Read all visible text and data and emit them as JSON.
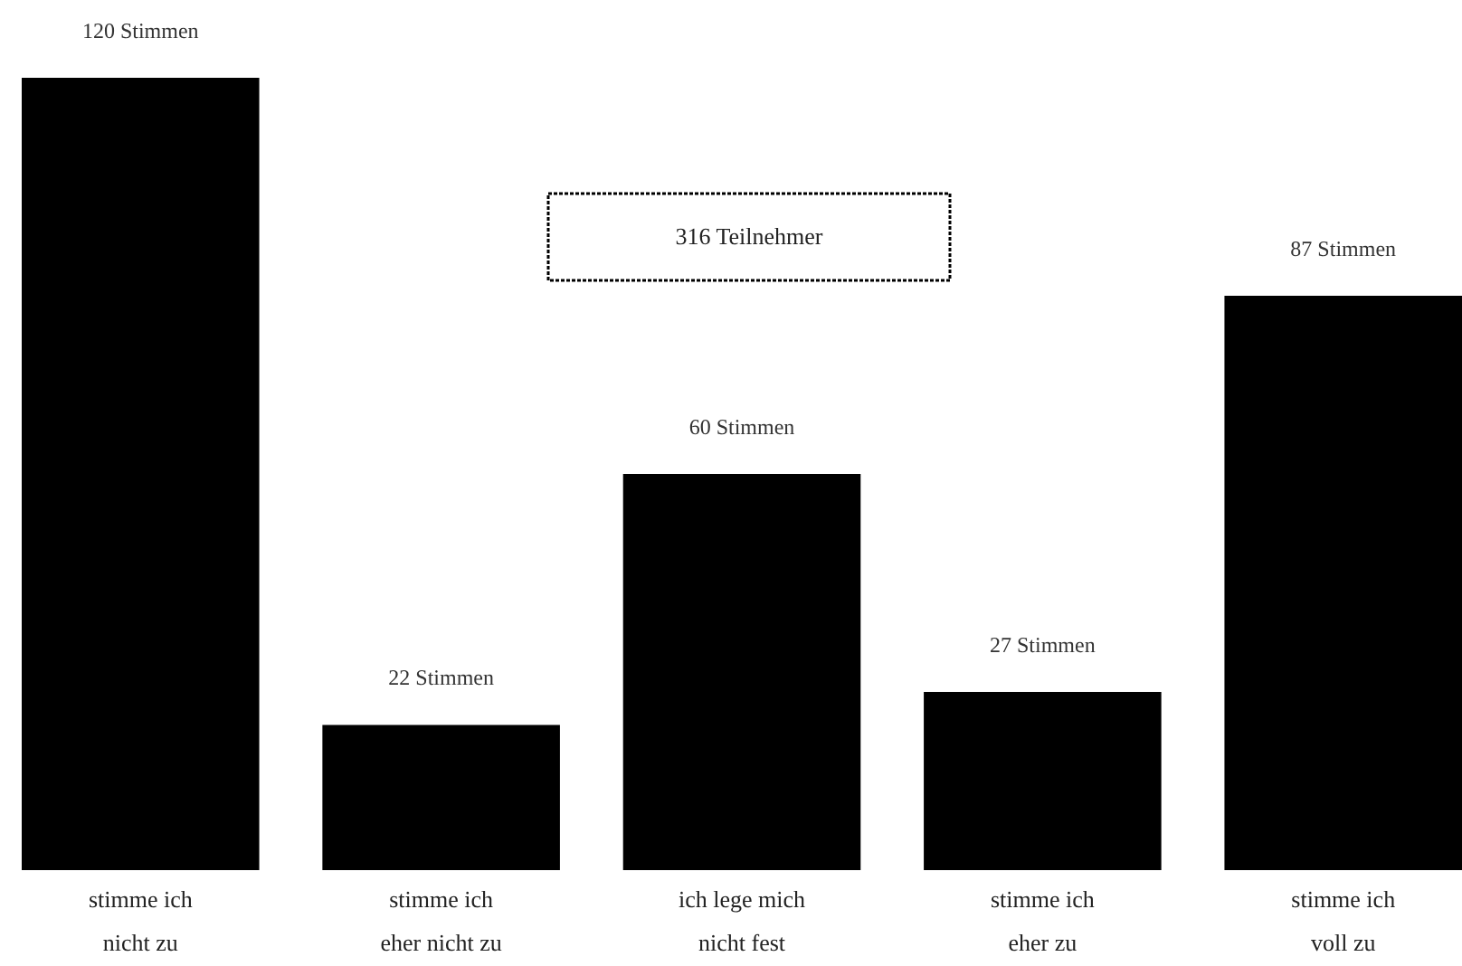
{
  "chart_data": {
    "type": "bar",
    "categories": [
      "stimme ich nicht zu",
      "stimme ich eher nicht zu",
      "ich lege mich nicht fest",
      "stimme ich eher zu",
      "stimme ich voll zu"
    ],
    "values": [
      120,
      22,
      60,
      27,
      87
    ],
    "value_labels": [
      "120 Stimmen",
      "22 Stimmen",
      "60 Stimmen",
      "27 Stimmen",
      "87 Stimmen"
    ],
    "color": "#000000",
    "annotations": [
      "316 Teilnehmer"
    ],
    "tick_labels": "x"
  }
}
